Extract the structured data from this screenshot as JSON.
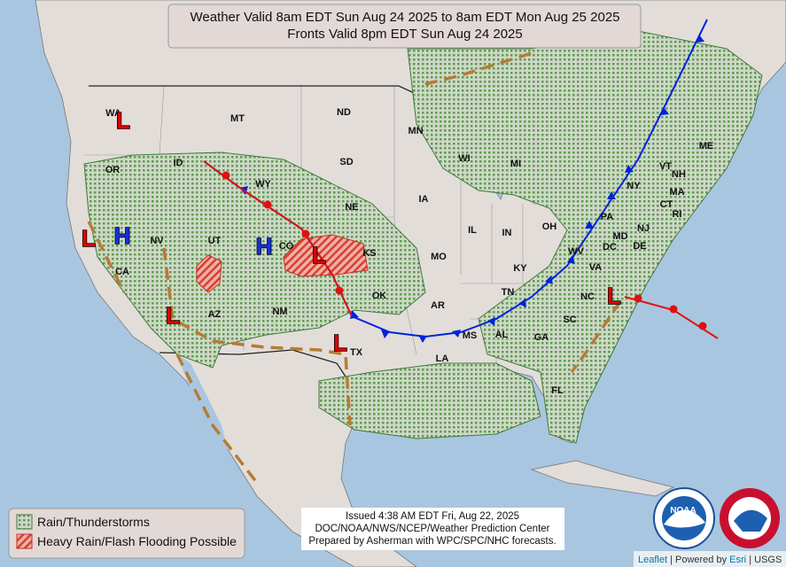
{
  "title": {
    "line1": "Weather Valid 8am EDT Sun Aug 24 2025 to 8am EDT Mon Aug 25 2025",
    "line2": "Fronts Valid 8pm EDT Sun Aug 24 2025"
  },
  "states": [
    "WA",
    "MT",
    "ID",
    "OR",
    "WY",
    "ND",
    "SD",
    "MN",
    "WI",
    "MI",
    "NE",
    "IA",
    "IL",
    "IN",
    "OH",
    "PA",
    "NY",
    "VT",
    "NH",
    "ME",
    "MA",
    "CT",
    "RI",
    "NJ",
    "DE",
    "MD",
    "DC",
    "VA",
    "WV",
    "KY",
    "TN",
    "NC",
    "SC",
    "GA",
    "AL",
    "MS",
    "LA",
    "AR",
    "MO",
    "KS",
    "OK",
    "TX",
    "NM",
    "AZ",
    "UT",
    "CO",
    "NV",
    "CA",
    "FL"
  ],
  "pressure_centers": [
    "L",
    "H",
    "L",
    "L",
    "H",
    "L",
    "L",
    "L"
  ],
  "legend": {
    "items": [
      "Rain/Thunderstorms",
      "Heavy Rain/Flash Flooding Possible"
    ]
  },
  "issued": {
    "line1": "Issued  4:38 AM EDT Fri, Aug 22, 2025",
    "line2": "DOC/NOAA/NWS/NCEP/Weather Prediction Center",
    "line3": "Prepared by Asherman with WPC/SPC/NHC forecasts."
  },
  "logos": {
    "noaa": "NOAA"
  },
  "attribution": {
    "leaflet": "Leaflet",
    "powered": "| Powered by",
    "esri": "Esri",
    "usgs": "| USGS"
  }
}
